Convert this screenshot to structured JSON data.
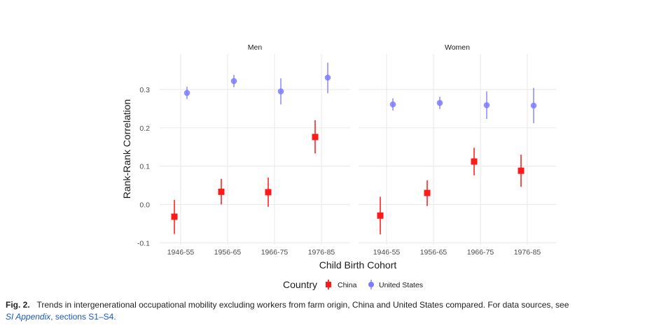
{
  "chart_data": {
    "type": "scatter",
    "ylabel": "Rank-Rank Correlation",
    "xlabel": "Child Birth Cohort",
    "ylim": [
      -0.105,
      0.393
    ],
    "yticks": [
      -0.1,
      0.0,
      0.1,
      0.2,
      0.3
    ],
    "ytick_labels": [
      "-0.1",
      "0.0",
      "0.1",
      "0.2",
      "0.3"
    ],
    "categories": [
      "1946-55",
      "1956-65",
      "1966-75",
      "1976-85"
    ],
    "grid": true,
    "legend": {
      "title": "Country",
      "placement": "bottom",
      "entries": [
        "China",
        "United States"
      ]
    },
    "colors": {
      "China": "#ff1a1a",
      "United States": "#7b7bff"
    },
    "panels": [
      {
        "title": "Men",
        "series": [
          {
            "name": "China",
            "values": [
              -0.032,
              0.033,
              0.032,
              0.176
            ],
            "lower": [
              -0.077,
              0.0,
              -0.006,
              0.133
            ],
            "upper": [
              0.012,
              0.067,
              0.07,
              0.22
            ]
          },
          {
            "name": "United States",
            "values": [
              0.291,
              0.322,
              0.295,
              0.331
            ],
            "lower": [
              0.275,
              0.306,
              0.261,
              0.29
            ],
            "upper": [
              0.307,
              0.338,
              0.329,
              0.37
            ]
          }
        ]
      },
      {
        "title": "Women",
        "series": [
          {
            "name": "China",
            "values": [
              -0.029,
              0.03,
              0.112,
              0.088
            ],
            "lower": [
              -0.078,
              -0.004,
              0.076,
              0.046
            ],
            "upper": [
              0.02,
              0.063,
              0.148,
              0.13
            ]
          },
          {
            "name": "United States",
            "values": [
              0.261,
              0.265,
              0.259,
              0.258
            ],
            "lower": [
              0.245,
              0.249,
              0.223,
              0.212
            ],
            "upper": [
              0.277,
              0.281,
              0.295,
              0.304
            ]
          }
        ]
      }
    ]
  },
  "caption": {
    "label": "Fig. 2.",
    "text": "Trends in intergenerational occupational mobility excluding workers from farm origin, China and United States compared. For data sources, see",
    "link": "SI Appendix",
    "tail": ", sections S1–S4."
  }
}
